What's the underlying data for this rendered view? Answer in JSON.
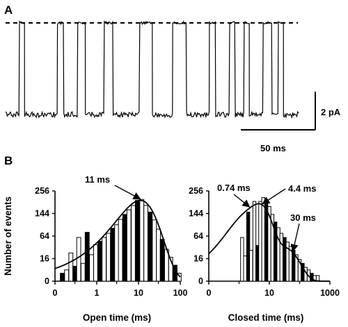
{
  "panel_a": {
    "label": "A",
    "scalebar_current": "2 pA",
    "scalebar_time": "50 ms",
    "trace_levels": [
      "open",
      "closed"
    ],
    "trace_sequence": "closed,open,closed,open,closed,open,closed,open,closed,open,closed,open,closed,open,closed,open,closed,open,closed,open,closed,open,closed"
  },
  "panel_b": {
    "label": "B"
  },
  "chart_data": [
    {
      "type": "bar",
      "xlabel": "Open time (ms)",
      "ylabel": "Number of events",
      "x_scale": "log",
      "y_scale": "sqrt",
      "x_ticks": [
        "0",
        "1",
        "10",
        "100"
      ],
      "y_ticks": [
        "0",
        "16",
        "64",
        "144",
        "256"
      ],
      "xlim": [
        0.1,
        100
      ],
      "ylim": [
        0,
        256
      ],
      "x": [
        0.15,
        0.19,
        0.24,
        0.3,
        0.37,
        0.47,
        0.59,
        0.75,
        0.94,
        1.2,
        1.5,
        1.9,
        2.4,
        3.0,
        3.7,
        4.7,
        5.9,
        7.5,
        9.4,
        12,
        15,
        19,
        24,
        30,
        37,
        47,
        59,
        75,
        94
      ],
      "values": [
        2,
        4,
        25,
        7,
        60,
        10,
        75,
        22,
        42,
        50,
        60,
        72,
        88,
        100,
        120,
        140,
        160,
        180,
        205,
        210,
        180,
        150,
        118,
        85,
        55,
        32,
        18,
        8,
        2
      ],
      "fit_peak_label": "11 ms",
      "fit_peak": 11,
      "fit_peak_count": 205
    },
    {
      "type": "bar",
      "xlabel": "Closed time (ms)",
      "ylabel": "",
      "x_scale": "log",
      "y_scale": "sqrt",
      "x_ticks": [
        "0",
        "10",
        "1000"
      ],
      "y_ticks": [
        "0",
        "16",
        "64",
        "144",
        "256"
      ],
      "xlim": [
        0.1,
        1000
      ],
      "ylim": [
        0,
        256
      ],
      "x": [
        0.12,
        0.16,
        0.2,
        0.25,
        0.32,
        0.4,
        0.5,
        0.63,
        0.79,
        1.0,
        1.26,
        1.58,
        2.0,
        2.5,
        3.2,
        4.0,
        5.0,
        6.3,
        7.9,
        10,
        12.6,
        15.8,
        20,
        25,
        32,
        40,
        50,
        63,
        79,
        100,
        126,
        158,
        200,
        251,
        316,
        398
      ],
      "values": [
        0,
        0,
        0,
        0,
        0,
        0,
        0,
        0,
        0,
        0,
        60,
        20,
        150,
        30,
        200,
        40,
        200,
        220,
        200,
        175,
        140,
        110,
        90,
        72,
        60,
        48,
        38,
        30,
        22,
        15,
        10,
        6,
        4,
        2,
        1,
        1
      ],
      "fit_components": [
        {
          "label": "0.74 ms",
          "tau": 0.74
        },
        {
          "label": "4.4 ms",
          "tau": 4.4
        },
        {
          "label": "30 ms",
          "tau": 30
        }
      ]
    }
  ]
}
